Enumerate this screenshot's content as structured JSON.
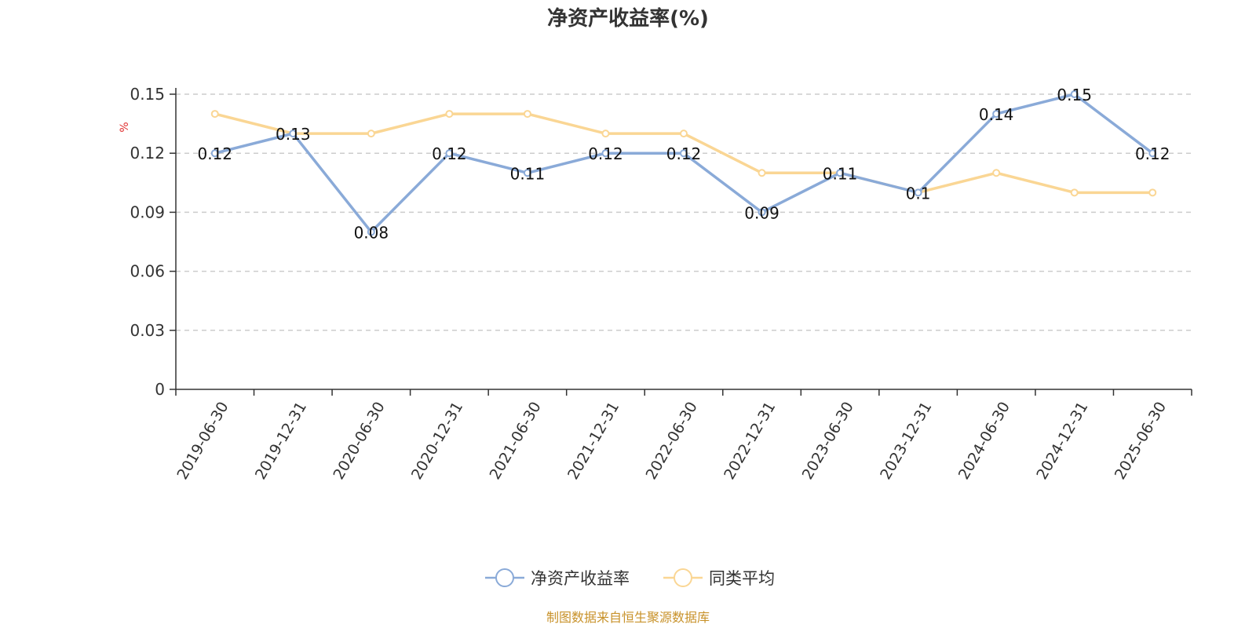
{
  "chart_data": {
    "type": "line",
    "title": "净资产收益率(%)",
    "ylabel": "%",
    "xlabel": "",
    "categories": [
      "2019-06-30",
      "2019-12-31",
      "2020-06-30",
      "2020-12-31",
      "2021-06-30",
      "2021-12-31",
      "2022-06-30",
      "2022-12-31",
      "2023-06-30",
      "2023-12-31",
      "2024-06-30",
      "2024-12-31",
      "2025-06-30"
    ],
    "ylim": [
      0,
      0.15
    ],
    "yticks": [
      "0",
      "0.03",
      "0.06",
      "0.09",
      "0.12",
      "0.15"
    ],
    "grid": true,
    "legend_position": "bottom-center",
    "series": [
      {
        "name": "净资产收益率",
        "color": "#8aaad8",
        "show_labels": true,
        "values": [
          0.12,
          0.13,
          0.08,
          0.12,
          0.11,
          0.12,
          0.12,
          0.09,
          0.11,
          0.1,
          0.14,
          0.15,
          0.12
        ]
      },
      {
        "name": "同类平均",
        "color": "#fad694",
        "show_labels": false,
        "values": [
          0.14,
          0.13,
          0.13,
          0.14,
          0.14,
          0.13,
          0.13,
          0.11,
          0.11,
          0.1,
          0.11,
          0.1,
          0.1
        ]
      }
    ]
  },
  "footer": {
    "source": "制图数据来自恒生聚源数据库"
  }
}
